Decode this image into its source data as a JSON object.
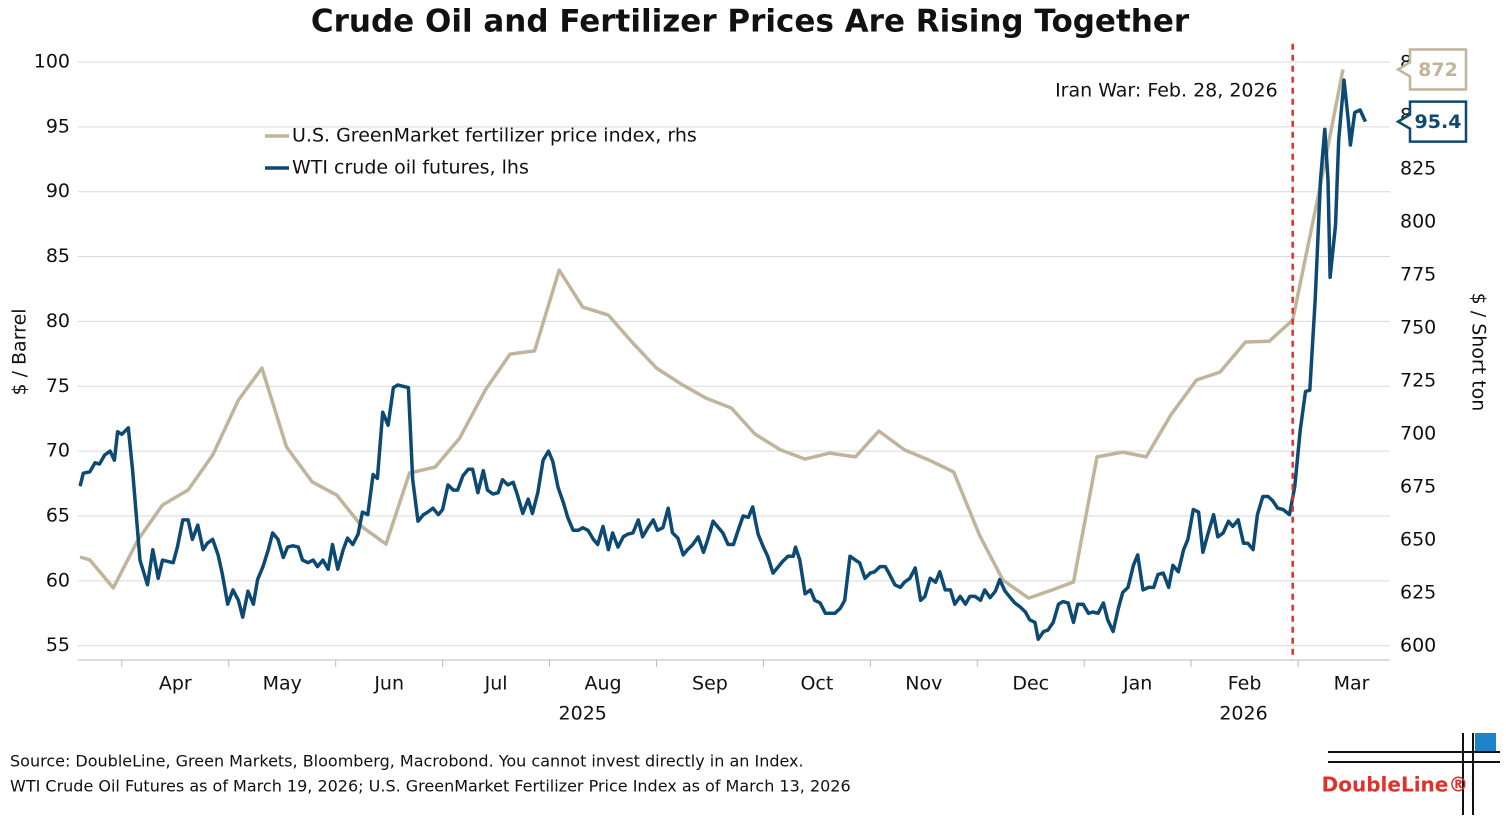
{
  "chart_data": {
    "type": "line",
    "title": "Crude Oil and Fertilizer Prices Are Rising Together",
    "y_label": "$ / Barrel",
    "y2_label": "$ / Short ton",
    "legend": "upper-left",
    "grid": true,
    "xlim": [
      0.59,
      12.86
    ],
    "xticks": [
      {
        "value": 1.5,
        "label": "Apr"
      },
      {
        "value": 2.5,
        "label": "May"
      },
      {
        "value": 3.5,
        "label": "Jun"
      },
      {
        "value": 4.5,
        "label": "Jul"
      },
      {
        "value": 5.5,
        "label": "Aug"
      },
      {
        "value": 6.5,
        "label": "Sep"
      },
      {
        "value": 7.5,
        "label": "Oct"
      },
      {
        "value": 8.5,
        "label": "Nov"
      },
      {
        "value": 9.5,
        "label": "Dec"
      },
      {
        "value": 10.5,
        "label": "Jan"
      },
      {
        "value": 11.5,
        "label": "Feb"
      },
      {
        "value": 12.5,
        "label": "Mar"
      }
    ],
    "year_ticks": [
      {
        "value": 5.31,
        "label": "2025"
      },
      {
        "value": 11.49,
        "label": "2026"
      }
    ],
    "ylim": [
      53.9,
      101.4
    ],
    "yticks": [
      55,
      60,
      65,
      70,
      75,
      80,
      85,
      90,
      95,
      100
    ],
    "y2lim": [
      593.4,
      884.1
    ],
    "y2ticks": [
      600,
      625,
      650,
      675,
      700,
      725,
      750,
      775,
      800,
      825,
      850,
      875
    ],
    "event": {
      "x": 11.95,
      "label": "Iran War: Feb. 28, 2026",
      "color": "#e0312b"
    },
    "series": [
      {
        "name": "U.S. GreenMarket fertilizer price index, rhs",
        "color": "#c0b49b",
        "axis": "y2",
        "end_label": "872",
        "x": [
          0.61,
          0.7,
          0.92,
          1.15,
          1.38,
          1.62,
          1.85,
          2.09,
          2.31,
          2.54,
          2.78,
          3.01,
          3.25,
          3.47,
          3.69,
          3.93,
          4.16,
          4.4,
          4.63,
          4.86,
          5.09,
          5.31,
          5.55,
          5.77,
          6.0,
          6.23,
          6.46,
          6.7,
          6.92,
          7.16,
          7.39,
          7.62,
          7.86,
          8.08,
          8.32,
          8.55,
          8.78,
          9.02,
          9.24,
          9.48,
          9.7,
          9.9,
          10.12,
          10.36,
          10.58,
          10.81,
          11.05,
          11.27,
          11.51,
          11.73,
          11.95,
          12.19,
          12.42
        ],
        "values": [
          642.0,
          640.6,
          627.4,
          650.0,
          666.5,
          673.6,
          690.1,
          716.0,
          731.1,
          693.9,
          677.4,
          671.2,
          656.1,
          648.1,
          681.6,
          684.4,
          698.1,
          720.8,
          737.7,
          739.2,
          777.4,
          759.9,
          756.1,
          743.4,
          731.1,
          723.6,
          717.0,
          712.3,
          700.0,
          692.5,
          688.2,
          691.0,
          689.2,
          701.4,
          692.5,
          687.7,
          682.1,
          652.4,
          631.1,
          622.6,
          626.4,
          630.2,
          689.2,
          691.5,
          689.2,
          709.0,
          725.5,
          729.2,
          743.4,
          743.8,
          753.8,
          812.7,
          872
        ]
      },
      {
        "name": "WTI crude oil futures, lhs",
        "color": "#0d4a73",
        "end_label": "95.4",
        "x": [
          0.61,
          0.64,
          0.7,
          0.75,
          0.79,
          0.84,
          0.89,
          0.93,
          0.96,
          1.0,
          1.06,
          1.1,
          1.17,
          1.24,
          1.29,
          1.34,
          1.38,
          1.43,
          1.48,
          1.52,
          1.57,
          1.62,
          1.66,
          1.71,
          1.76,
          1.8,
          1.85,
          1.9,
          1.94,
          1.99,
          2.04,
          2.09,
          2.13,
          2.18,
          2.23,
          2.27,
          2.32,
          2.37,
          2.41,
          2.46,
          2.51,
          2.55,
          2.6,
          2.65,
          2.69,
          2.74,
          2.79,
          2.83,
          2.88,
          2.93,
          2.97,
          3.02,
          3.07,
          3.11,
          3.16,
          3.21,
          3.25,
          3.3,
          3.35,
          3.39,
          3.44,
          3.49,
          3.54,
          3.58,
          3.63,
          3.68,
          3.72,
          3.77,
          3.82,
          3.86,
          3.91,
          3.96,
          4.0,
          4.05,
          4.1,
          4.14,
          4.19,
          4.24,
          4.28,
          4.33,
          4.38,
          4.42,
          4.47,
          4.52,
          4.56,
          4.61,
          4.66,
          4.7,
          4.75,
          4.8,
          4.84,
          4.89,
          4.94,
          4.99,
          5.03,
          5.08,
          5.13,
          5.17,
          5.22,
          5.27,
          5.31,
          5.36,
          5.41,
          5.45,
          5.5,
          5.55,
          5.59,
          5.64,
          5.69,
          5.73,
          5.78,
          5.83,
          5.87,
          5.92,
          5.97,
          6.01,
          6.06,
          6.11,
          6.15,
          6.2,
          6.25,
          6.29,
          6.34,
          6.39,
          6.44,
          6.48,
          6.53,
          6.58,
          6.62,
          6.67,
          6.72,
          6.76,
          6.81,
          6.86,
          6.9,
          6.95,
          7.0,
          7.04,
          7.09,
          7.14,
          7.18,
          7.23,
          7.28,
          7.3,
          7.34,
          7.39,
          7.44,
          7.48,
          7.53,
          7.58,
          7.62,
          7.67,
          7.72,
          7.76,
          7.81,
          7.86,
          7.9,
          7.95,
          8.0,
          8.04,
          8.09,
          8.14,
          8.18,
          8.23,
          8.28,
          8.32,
          8.37,
          8.42,
          8.47,
          8.51,
          8.56,
          8.61,
          8.65,
          8.7,
          8.75,
          8.79,
          8.84,
          8.89,
          8.93,
          8.98,
          9.03,
          9.07,
          9.12,
          9.17,
          9.21,
          9.26,
          9.31,
          9.35,
          9.4,
          9.45,
          9.49,
          9.54,
          9.57,
          9.62,
          9.66,
          9.71,
          9.76,
          9.8,
          9.85,
          9.9,
          9.94,
          9.99,
          10.04,
          10.08,
          10.13,
          10.18,
          10.22,
          10.27,
          10.32,
          10.36,
          10.41,
          10.46,
          10.5,
          10.55,
          10.6,
          10.65,
          10.69,
          10.74,
          10.79,
          10.83,
          10.88,
          10.93,
          10.97,
          11.02,
          11.07,
          11.11,
          11.16,
          11.21,
          11.25,
          11.3,
          11.35,
          11.39,
          11.44,
          11.49,
          11.53,
          11.58,
          11.62,
          11.67,
          11.72,
          11.76,
          11.81,
          11.86,
          11.92,
          11.97,
          12.02,
          12.07,
          12.11,
          12.16,
          12.21,
          12.25,
          12.28,
          12.3,
          12.35,
          12.38,
          12.43,
          12.47,
          12.49,
          12.53,
          12.58,
          12.63
        ],
        "values": [
          67.3,
          68.3,
          68.4,
          69.1,
          69.0,
          69.7,
          70.0,
          69.3,
          71.5,
          71.3,
          71.8,
          68.6,
          61.6,
          59.7,
          62.4,
          60.2,
          61.6,
          61.5,
          61.4,
          62.6,
          64.7,
          64.7,
          63.2,
          64.3,
          62.4,
          62.9,
          63.2,
          62.0,
          60.5,
          58.2,
          59.3,
          58.5,
          57.2,
          59.2,
          58.2,
          60.1,
          61.1,
          62.4,
          63.7,
          63.2,
          61.8,
          62.6,
          62.7,
          62.6,
          61.6,
          61.4,
          61.6,
          61.1,
          61.6,
          60.9,
          62.8,
          60.9,
          62.4,
          63.3,
          62.8,
          63.6,
          65.3,
          65.1,
          68.2,
          67.9,
          73.0,
          72.0,
          74.9,
          75.1,
          75.0,
          74.9,
          67.8,
          64.6,
          65.1,
          65.3,
          65.6,
          65.1,
          65.5,
          67.4,
          67.0,
          67.0,
          68.1,
          68.6,
          68.6,
          66.8,
          68.5,
          67.0,
          66.7,
          66.8,
          67.8,
          67.4,
          67.6,
          66.6,
          65.2,
          66.3,
          65.2,
          66.8,
          69.3,
          70.0,
          69.2,
          67.2,
          66.0,
          64.9,
          63.9,
          63.9,
          64.1,
          63.9,
          63.2,
          62.8,
          64.2,
          62.4,
          63.7,
          62.6,
          63.4,
          63.6,
          63.7,
          64.7,
          63.4,
          64.1,
          64.7,
          63.9,
          64.1,
          65.6,
          63.7,
          63.3,
          62.0,
          62.4,
          62.8,
          63.4,
          62.2,
          63.2,
          64.6,
          64.1,
          63.7,
          62.8,
          62.8,
          63.8,
          65.0,
          64.9,
          65.7,
          63.6,
          62.6,
          61.9,
          60.6,
          61.1,
          61.5,
          61.9,
          61.9,
          62.6,
          61.6,
          59.0,
          59.3,
          58.5,
          58.3,
          57.5,
          57.5,
          57.5,
          57.9,
          58.5,
          61.9,
          61.6,
          61.4,
          60.2,
          60.6,
          60.7,
          61.1,
          61.1,
          60.5,
          59.7,
          59.5,
          59.9,
          60.2,
          61.0,
          58.5,
          58.8,
          60.2,
          59.9,
          60.7,
          59.3,
          59.3,
          58.2,
          58.8,
          58.2,
          58.8,
          58.8,
          58.5,
          59.3,
          58.7,
          59.2,
          60.1,
          59.2,
          58.7,
          58.3,
          58.0,
          57.6,
          57.0,
          56.8,
          55.5,
          56.1,
          56.2,
          56.8,
          58.2,
          58.4,
          58.3,
          56.8,
          58.2,
          58.2,
          57.5,
          57.6,
          57.5,
          58.3,
          57.0,
          56.1,
          57.9,
          59.1,
          59.5,
          61.2,
          62.0,
          59.3,
          59.5,
          59.5,
          60.5,
          60.6,
          59.5,
          61.2,
          60.7,
          62.4,
          63.2,
          65.5,
          65.3,
          62.2,
          63.7,
          65.1,
          63.4,
          63.7,
          64.6,
          64.2,
          64.7,
          62.9,
          62.9,
          62.4,
          65.1,
          66.5,
          66.5,
          66.2,
          65.6,
          65.5,
          65.1,
          67.3,
          71.6,
          74.6,
          74.7,
          81.7,
          90.9,
          94.8,
          90.9,
          83.4,
          87.4,
          94.0,
          98.6,
          95.5,
          93.6,
          96.1,
          96.3,
          95.4
        ]
      }
    ],
    "notes": [
      "Source: DoubleLine, Green Markets, Bloomberg, Macrobond. You cannot invest directly in an Index.",
      "WTI Crude Oil Futures as of March 19, 2026; U.S. GreenMarket Fertilizer Price Index as of March 13, 2026"
    ],
    "logo": "DoubleLine®"
  }
}
